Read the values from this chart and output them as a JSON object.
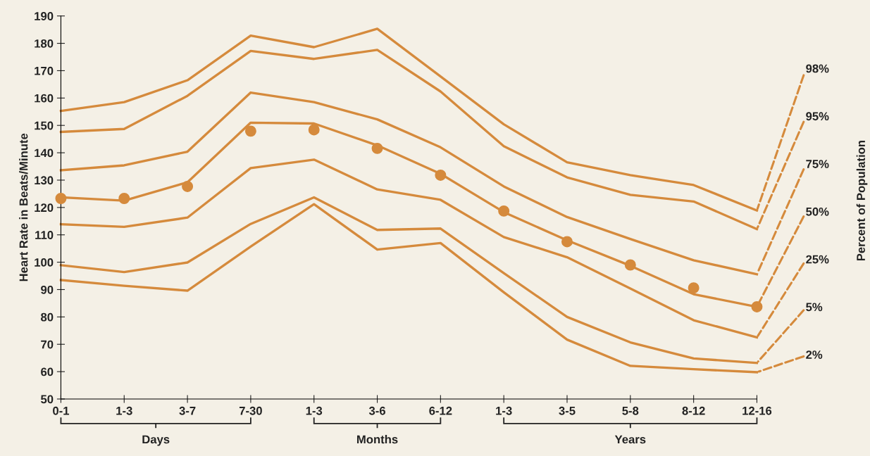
{
  "chart_data": {
    "type": "line",
    "ylabel": "Heart Rate in Beats/Minute",
    "legend_title": "Percent of Population",
    "categories": [
      "0-1",
      "1-3",
      "3-7",
      "7-30",
      "1-3",
      "3-6",
      "6-12",
      "1-3",
      "3-5",
      "5-8",
      "8-12",
      "12-16"
    ],
    "series": [
      {
        "name": "98%",
        "color": "#d58a3c",
        "values": [
          155.3,
          158.5,
          166.5,
          182.8,
          178.6,
          185.3,
          167.9,
          150.4,
          136.5,
          131.8,
          128.2,
          118.9
        ]
      },
      {
        "name": "95%",
        "color": "#d58a3c",
        "values": [
          147.6,
          148.7,
          160.8,
          177.2,
          174.3,
          177.6,
          162.4,
          142.4,
          131,
          124.6,
          122.2,
          112.1
        ]
      },
      {
        "name": "75%",
        "color": "#d58a3c",
        "values": [
          133.6,
          135.4,
          140.4,
          162,
          158.5,
          152.2,
          142,
          127.7,
          116.5,
          108.5,
          100.7,
          95.6
        ]
      },
      {
        "name": "50%",
        "color": "#d58a3c",
        "values": [
          123.7,
          122.5,
          129.2,
          151,
          150.7,
          142.7,
          132.3,
          118.3,
          108,
          98.7,
          88.3,
          83.7
        ]
      },
      {
        "name": "25%",
        "color": "#d58a3c",
        "values": [
          113.9,
          112.9,
          116.3,
          134.4,
          137.5,
          126.6,
          122.8,
          109.2,
          101.8,
          90.4,
          78.8,
          72.5
        ]
      },
      {
        "name": "5%",
        "color": "#d58a3c",
        "values": [
          98.9,
          96.4,
          99.9,
          114,
          123.7,
          111.8,
          112.3,
          96,
          80,
          70.7,
          64.8,
          63.2
        ]
      },
      {
        "name": "2%",
        "color": "#d58a3c",
        "values": [
          93.5,
          91.4,
          89.6,
          105.7,
          121.2,
          104.6,
          107,
          89,
          71.7,
          62.1,
          60.9,
          59.8
        ]
      },
      {
        "type": "scatter",
        "color": "#d58a3c",
        "marker": "circle",
        "values": [
          123.3,
          123.3,
          127.7,
          147.9,
          148.4,
          141.6,
          131.8,
          118.7,
          107.5,
          99,
          90.6,
          83.7
        ]
      }
    ],
    "ylim": [
      50,
      190
    ],
    "yticks": [
      50,
      60,
      70,
      80,
      90,
      100,
      110,
      120,
      130,
      140,
      150,
      160,
      170,
      180,
      190
    ],
    "annotations": [
      "Days",
      "Months",
      "Years"
    ],
    "grid": false,
    "line_style": "solid"
  }
}
